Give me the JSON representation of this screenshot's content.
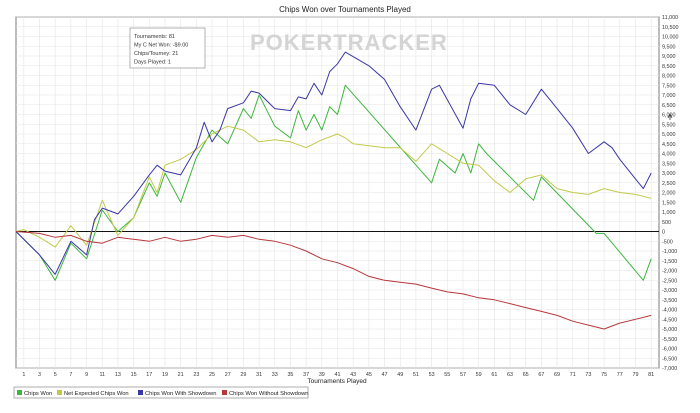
{
  "chart_data": {
    "type": "line",
    "title": "Chips Won over Tournaments Played",
    "xlabel": "Tournaments Played",
    "ylabel": "",
    "xlim": [
      0,
      82
    ],
    "ylim": [
      -7000,
      11000
    ],
    "ytick_step": 500,
    "x_ticks": [
      1,
      3,
      5,
      7,
      9,
      11,
      13,
      15,
      17,
      19,
      21,
      23,
      25,
      27,
      29,
      31,
      33,
      35,
      37,
      39,
      41,
      43,
      45,
      47,
      49,
      51,
      53,
      55,
      57,
      59,
      61,
      63,
      65,
      67,
      69,
      71,
      73,
      75,
      77,
      79,
      81
    ],
    "grid": true,
    "watermark": "POKERTRACKER",
    "info_box": {
      "lines": [
        "Tournaments: 81",
        "My C Net Won: -$9.00",
        "Chips/Tourney: 21",
        "Days Played: 1"
      ]
    },
    "legend_position": "bottom-left",
    "series": [
      {
        "name": "Chips Won",
        "color": "#3db63d",
        "x": [
          0,
          3,
          5,
          7,
          9,
          11,
          13,
          15,
          17,
          18,
          19,
          21,
          23,
          25,
          27,
          29,
          30,
          31,
          33,
          35,
          36,
          37,
          38,
          39,
          40,
          41,
          42,
          53,
          54,
          56,
          57,
          58,
          59,
          60,
          66,
          67,
          74,
          75,
          80,
          81
        ],
        "y": [
          0,
          -1200,
          -2500,
          -600,
          -1400,
          1100,
          0,
          700,
          2500,
          1800,
          3000,
          1500,
          3800,
          5200,
          4500,
          6300,
          5800,
          7000,
          5400,
          4800,
          6200,
          5200,
          6000,
          5200,
          6400,
          6000,
          7500,
          2500,
          3700,
          3000,
          4000,
          3000,
          4500,
          4000,
          1600,
          2800,
          -100,
          -100,
          -2500,
          -1400
        ]
      },
      {
        "name": "Net Expected Chips Won",
        "color": "#c2c94a",
        "x": [
          0,
          1,
          3,
          5,
          7,
          9,
          11,
          13,
          15,
          17,
          18,
          19,
          21,
          23,
          25,
          27,
          29,
          31,
          33,
          35,
          37,
          39,
          41,
          42,
          43,
          45,
          47,
          49,
          51,
          53,
          55,
          57,
          59,
          61,
          63,
          65,
          67,
          69,
          71,
          73,
          75,
          77,
          79,
          81
        ],
        "y": [
          0,
          100,
          -300,
          -800,
          300,
          -700,
          1600,
          -200,
          700,
          2800,
          2000,
          3400,
          3700,
          4200,
          5000,
          5400,
          5200,
          4600,
          4700,
          4600,
          4300,
          4700,
          5000,
          4800,
          4500,
          4400,
          4300,
          4300,
          3600,
          4500,
          4000,
          3500,
          3400,
          2600,
          2000,
          2700,
          2900,
          2200,
          2000,
          1900,
          2200,
          2000,
          1900,
          1700
        ]
      },
      {
        "name": "Chips Won With Showdown",
        "color": "#3a37a6",
        "x": [
          0,
          3,
          5,
          7,
          9,
          10,
          11,
          13,
          15,
          17,
          18,
          19,
          21,
          23,
          24,
          25,
          26,
          27,
          29,
          30,
          31,
          33,
          35,
          36,
          37,
          38,
          39,
          40,
          41,
          42,
          45,
          47,
          49,
          51,
          53,
          54,
          57,
          58,
          59,
          61,
          63,
          65,
          67,
          69,
          71,
          73,
          75,
          76,
          77,
          78,
          79,
          80,
          81
        ],
        "y": [
          0,
          -1200,
          -2200,
          -500,
          -1200,
          600,
          1200,
          900,
          1800,
          2900,
          3400,
          3100,
          2900,
          4300,
          5600,
          4600,
          5200,
          6300,
          6600,
          7200,
          7100,
          6300,
          6200,
          6900,
          6800,
          7600,
          7000,
          8200,
          8600,
          9200,
          8500,
          7800,
          6400,
          5200,
          7300,
          7500,
          5300,
          6800,
          7600,
          7500,
          6500,
          6000,
          7300,
          6300,
          5300,
          4000,
          4600,
          4300,
          3700,
          3200,
          2700,
          2200,
          3000
        ]
      },
      {
        "name": "Chips Won Without Showdown",
        "color": "#b8373b",
        "x": [
          0,
          3,
          5,
          7,
          9,
          11,
          13,
          15,
          17,
          19,
          21,
          23,
          25,
          27,
          29,
          31,
          33,
          35,
          37,
          39,
          41,
          43,
          45,
          47,
          49,
          51,
          53,
          55,
          57,
          59,
          61,
          63,
          65,
          67,
          69,
          71,
          73,
          75,
          77,
          79,
          81
        ],
        "y": [
          0,
          -100,
          -300,
          -200,
          -500,
          -600,
          -300,
          -400,
          -500,
          -300,
          -500,
          -400,
          -200,
          -300,
          -200,
          -400,
          -500,
          -700,
          -1000,
          -1400,
          -1600,
          -1900,
          -2300,
          -2500,
          -2600,
          -2700,
          -2900,
          -3100,
          -3200,
          -3400,
          -3500,
          -3700,
          -3900,
          -4100,
          -4300,
          -4600,
          -4800,
          -5000,
          -4700,
          -4500,
          -4300
        ]
      }
    ]
  }
}
